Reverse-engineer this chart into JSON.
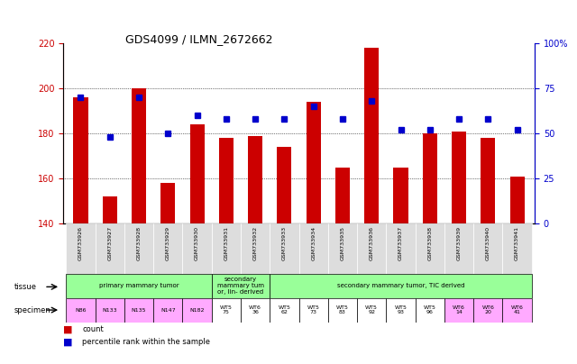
{
  "title": "GDS4099 / ILMN_2672662",
  "samples": [
    "GSM733926",
    "GSM733927",
    "GSM733928",
    "GSM733929",
    "GSM733930",
    "GSM733931",
    "GSM733932",
    "GSM733933",
    "GSM733934",
    "GSM733935",
    "GSM733936",
    "GSM733937",
    "GSM733938",
    "GSM733939",
    "GSM733940",
    "GSM733941"
  ],
  "counts": [
    196,
    152,
    200,
    158,
    184,
    178,
    179,
    174,
    194,
    165,
    218,
    165,
    180,
    181,
    178,
    161
  ],
  "percentiles": [
    70,
    48,
    70,
    50,
    60,
    58,
    58,
    58,
    65,
    58,
    68,
    52,
    52,
    58,
    58,
    52
  ],
  "ylim_left": [
    140,
    220
  ],
  "ylim_right": [
    0,
    100
  ],
  "yticks_left": [
    140,
    160,
    180,
    200,
    220
  ],
  "yticks_right": [
    0,
    25,
    50,
    75,
    100
  ],
  "bar_color": "#cc0000",
  "dot_color": "#0000cc",
  "bg_color": "#ffffff",
  "tissue_row": {
    "primary": {
      "label": "primary mammary tumor",
      "indices": [
        0,
        1,
        2,
        3,
        4
      ],
      "color": "#99ff99"
    },
    "secondary_lin": {
      "label": "secondary\nmammary tum\nor, lin- derived",
      "indices": [
        5,
        6
      ],
      "color": "#99ff99"
    },
    "secondary_tic": {
      "label": "secondary mammary tumor, TIC derived",
      "indices": [
        7,
        8,
        9,
        10,
        11,
        12,
        13,
        14,
        15
      ],
      "color": "#99ff99"
    }
  },
  "specimen_row": {
    "labels": [
      "N86",
      "N133",
      "N135",
      "N147",
      "N182",
      "WT5\n75",
      "WT6\n36",
      "WT5\n62",
      "WT5\n73",
      "WT5\n83",
      "WT5\n92",
      "WT5\n93",
      "WT5\n96",
      "WT6\n14",
      "WT6\n20",
      "WT6\n41"
    ],
    "colors": [
      "#ffaaff",
      "#ffaaff",
      "#ffaaff",
      "#ffaaff",
      "#ffaaff",
      "#ffffff",
      "#ffffff",
      "#ffffff",
      "#ffffff",
      "#ffffff",
      "#ffffff",
      "#ffffff",
      "#ffffff",
      "#ffaaff",
      "#ffaaff",
      "#ffaaff"
    ]
  },
  "xticklabel_bg": "#dddddd",
  "legend_count_color": "#cc0000",
  "legend_dot_color": "#0000cc"
}
